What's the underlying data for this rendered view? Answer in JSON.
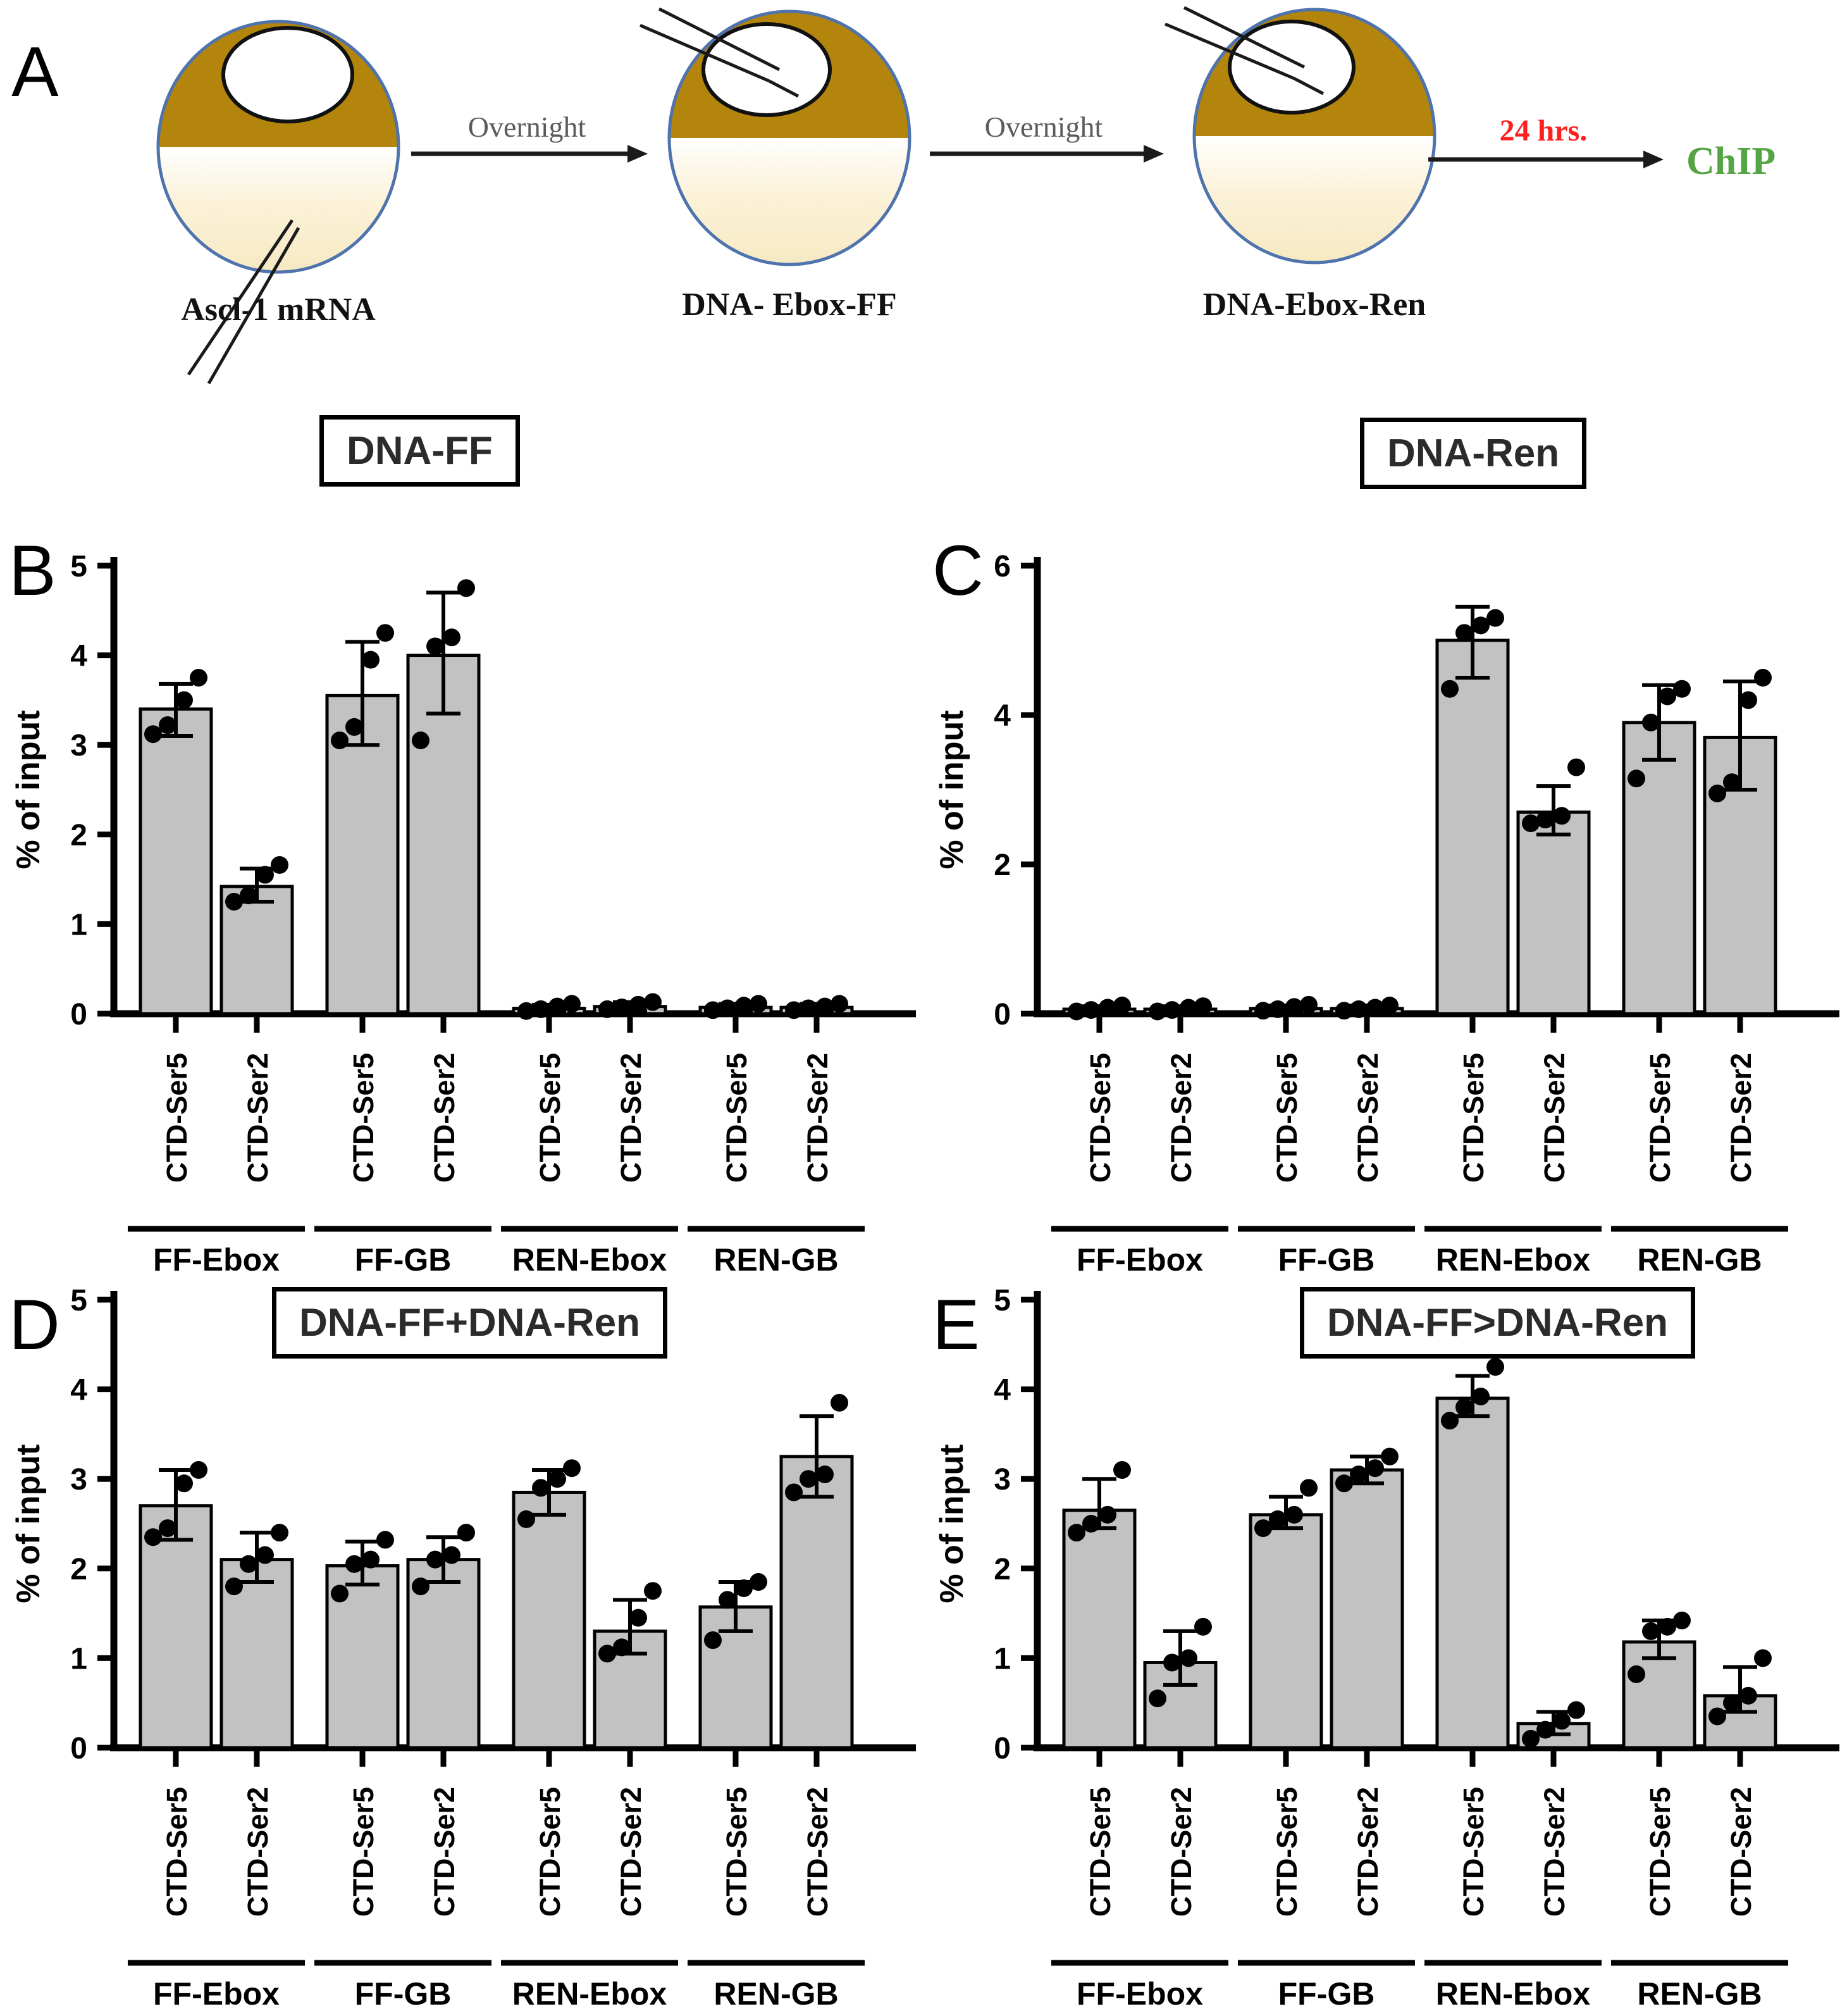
{
  "figure": {
    "panel_a": {
      "letter": "A",
      "eggs": [
        {
          "label": "Ascl-1 mRNA",
          "injection_site": "vegetal-cytoplasm"
        },
        {
          "label": "DNA- Ebox-FF",
          "injection_site": "nucleus"
        },
        {
          "label": "DNA-Ebox-Ren",
          "injection_site": "nucleus"
        }
      ],
      "arrow_labels": [
        "Overnight",
        "Overnight",
        "24 hrs."
      ],
      "result_label": "ChIP",
      "colors": {
        "animal_pole": "#B3850C",
        "vegetal_pole": "#F6E9C3",
        "membrane": "#4E73AD",
        "overnight_text": "#5B5B5B",
        "time_text": "#FF1F1F",
        "result_text": "#56A545"
      }
    },
    "panel_letters": [
      "B",
      "C",
      "D",
      "E"
    ]
  },
  "chart_data": [
    {
      "type": "bar",
      "panel": "B",
      "title": "DNA-FF",
      "ylabel": "% of input",
      "ylim": [
        0,
        5
      ],
      "yticks": [
        0,
        1,
        2,
        3,
        4,
        5
      ],
      "grid": false,
      "legend": "none",
      "groups": [
        "FF-Ebox",
        "FF-GB",
        "REN-Ebox",
        "REN-GB"
      ],
      "bar_labels": [
        "CTD-Ser5",
        "CTD-Ser2"
      ],
      "bar_fill": "#C2C2C2",
      "series": [
        {
          "group": "FF-Ebox",
          "bar": "CTD-Ser5",
          "mean": 3.4,
          "sd_range": [
            3.1,
            3.68
          ],
          "points": [
            3.12,
            3.22,
            3.5,
            3.75
          ]
        },
        {
          "group": "FF-Ebox",
          "bar": "CTD-Ser2",
          "mean": 1.42,
          "sd_range": [
            1.25,
            1.62
          ],
          "points": [
            1.25,
            1.32,
            1.55,
            1.66
          ]
        },
        {
          "group": "FF-GB",
          "bar": "CTD-Ser5",
          "mean": 3.55,
          "sd_range": [
            3.0,
            4.15
          ],
          "points": [
            3.05,
            3.2,
            3.95,
            4.25
          ]
        },
        {
          "group": "FF-GB",
          "bar": "CTD-Ser2",
          "mean": 4.0,
          "sd_range": [
            3.35,
            4.7
          ],
          "points": [
            3.05,
            4.1,
            4.2,
            4.75
          ]
        },
        {
          "group": "REN-Ebox",
          "bar": "CTD-Ser5",
          "mean": 0.06,
          "sd_range": [
            0.02,
            0.1
          ],
          "points": [
            0.03,
            0.05,
            0.08,
            0.11
          ]
        },
        {
          "group": "REN-Ebox",
          "bar": "CTD-Ser2",
          "mean": 0.08,
          "sd_range": [
            0.03,
            0.13
          ],
          "points": [
            0.05,
            0.07,
            0.1,
            0.13
          ]
        },
        {
          "group": "REN-GB",
          "bar": "CTD-Ser5",
          "mean": 0.07,
          "sd_range": [
            0.03,
            0.11
          ],
          "points": [
            0.04,
            0.06,
            0.09,
            0.11
          ]
        },
        {
          "group": "REN-GB",
          "bar": "CTD-Ser2",
          "mean": 0.07,
          "sd_range": [
            0.03,
            0.11
          ],
          "points": [
            0.04,
            0.06,
            0.08,
            0.11
          ]
        }
      ]
    },
    {
      "type": "bar",
      "panel": "C",
      "title": "DNA-Ren",
      "ylabel": "% of input",
      "ylim": [
        0,
        6
      ],
      "yticks": [
        0,
        2,
        4,
        6
      ],
      "grid": false,
      "legend": "none",
      "groups": [
        "FF-Ebox",
        "FF-GB",
        "REN-Ebox",
        "REN-GB"
      ],
      "bar_labels": [
        "CTD-Ser5",
        "CTD-Ser2"
      ],
      "bar_fill": "#C2C2C2",
      "series": [
        {
          "group": "FF-Ebox",
          "bar": "CTD-Ser5",
          "mean": 0.06,
          "sd_range": [
            0.02,
            0.1
          ],
          "points": [
            0.03,
            0.05,
            0.08,
            0.11
          ]
        },
        {
          "group": "FF-Ebox",
          "bar": "CTD-Ser2",
          "mean": 0.06,
          "sd_range": [
            0.02,
            0.1
          ],
          "points": [
            0.03,
            0.05,
            0.08,
            0.1
          ]
        },
        {
          "group": "FF-GB",
          "bar": "CTD-Ser5",
          "mean": 0.07,
          "sd_range": [
            0.02,
            0.11
          ],
          "points": [
            0.04,
            0.06,
            0.09,
            0.12
          ]
        },
        {
          "group": "FF-GB",
          "bar": "CTD-Ser2",
          "mean": 0.07,
          "sd_range": [
            0.02,
            0.11
          ],
          "points": [
            0.04,
            0.06,
            0.08,
            0.11
          ]
        },
        {
          "group": "REN-Ebox",
          "bar": "CTD-Ser5",
          "mean": 5.0,
          "sd_range": [
            4.5,
            5.45
          ],
          "points": [
            4.35,
            5.1,
            5.2,
            5.3
          ]
        },
        {
          "group": "REN-Ebox",
          "bar": "CTD-Ser2",
          "mean": 2.7,
          "sd_range": [
            2.4,
            3.05
          ],
          "points": [
            2.55,
            2.6,
            2.65,
            3.3
          ]
        },
        {
          "group": "REN-GB",
          "bar": "CTD-Ser5",
          "mean": 3.9,
          "sd_range": [
            3.4,
            4.4
          ],
          "points": [
            3.15,
            3.9,
            4.25,
            4.35
          ]
        },
        {
          "group": "REN-GB",
          "bar": "CTD-Ser2",
          "mean": 3.7,
          "sd_range": [
            3.0,
            4.45
          ],
          "points": [
            2.95,
            3.1,
            4.2,
            4.5
          ]
        }
      ]
    },
    {
      "type": "bar",
      "panel": "D",
      "title": "DNA-FF+DNA-Ren",
      "ylabel": "% of input",
      "ylim": [
        0,
        5
      ],
      "yticks": [
        0,
        1,
        2,
        3,
        4,
        5
      ],
      "grid": false,
      "legend": "none",
      "groups": [
        "FF-Ebox",
        "FF-GB",
        "REN-Ebox",
        "REN-GB"
      ],
      "bar_labels": [
        "CTD-Ser5",
        "CTD-Ser2"
      ],
      "bar_fill": "#C2C2C2",
      "series": [
        {
          "group": "FF-Ebox",
          "bar": "CTD-Ser5",
          "mean": 2.7,
          "sd_range": [
            2.32,
            3.1
          ],
          "points": [
            2.35,
            2.45,
            2.95,
            3.1
          ]
        },
        {
          "group": "FF-Ebox",
          "bar": "CTD-Ser2",
          "mean": 2.1,
          "sd_range": [
            1.85,
            2.4
          ],
          "points": [
            1.8,
            2.05,
            2.15,
            2.4
          ]
        },
        {
          "group": "FF-GB",
          "bar": "CTD-Ser5",
          "mean": 2.03,
          "sd_range": [
            1.82,
            2.3
          ],
          "points": [
            1.72,
            2.05,
            2.1,
            2.32
          ]
        },
        {
          "group": "FF-GB",
          "bar": "CTD-Ser2",
          "mean": 2.1,
          "sd_range": [
            1.85,
            2.35
          ],
          "points": [
            1.8,
            2.1,
            2.15,
            2.4
          ]
        },
        {
          "group": "REN-Ebox",
          "bar": "CTD-Ser5",
          "mean": 2.85,
          "sd_range": [
            2.6,
            3.1
          ],
          "points": [
            2.55,
            2.9,
            3.0,
            3.12
          ]
        },
        {
          "group": "REN-Ebox",
          "bar": "CTD-Ser2",
          "mean": 1.3,
          "sd_range": [
            1.05,
            1.65
          ],
          "points": [
            1.05,
            1.12,
            1.45,
            1.75
          ]
        },
        {
          "group": "REN-GB",
          "bar": "CTD-Ser5",
          "mean": 1.57,
          "sd_range": [
            1.3,
            1.85
          ],
          "points": [
            1.2,
            1.65,
            1.78,
            1.85
          ]
        },
        {
          "group": "REN-GB",
          "bar": "CTD-Ser2",
          "mean": 3.25,
          "sd_range": [
            2.8,
            3.7
          ],
          "points": [
            2.85,
            3.0,
            3.05,
            3.85
          ]
        }
      ]
    },
    {
      "type": "bar",
      "panel": "E",
      "title": "DNA-FF>DNA-Ren",
      "ylabel": "% of input",
      "ylim": [
        0,
        5
      ],
      "yticks": [
        0,
        1,
        2,
        3,
        4,
        5
      ],
      "grid": false,
      "legend": "none",
      "groups": [
        "FF-Ebox",
        "FF-GB",
        "REN-Ebox",
        "REN-GB"
      ],
      "bar_labels": [
        "CTD-Ser5",
        "CTD-Ser2"
      ],
      "bar_fill": "#C2C2C2",
      "series": [
        {
          "group": "FF-Ebox",
          "bar": "CTD-Ser5",
          "mean": 2.65,
          "sd_range": [
            2.45,
            3.0
          ],
          "points": [
            2.4,
            2.5,
            2.6,
            3.1
          ]
        },
        {
          "group": "FF-Ebox",
          "bar": "CTD-Ser2",
          "mean": 0.95,
          "sd_range": [
            0.7,
            1.3
          ],
          "points": [
            0.55,
            0.95,
            1.0,
            1.35
          ]
        },
        {
          "group": "FF-GB",
          "bar": "CTD-Ser5",
          "mean": 2.6,
          "sd_range": [
            2.45,
            2.8
          ],
          "points": [
            2.45,
            2.55,
            2.6,
            2.9
          ]
        },
        {
          "group": "FF-GB",
          "bar": "CTD-Ser2",
          "mean": 3.1,
          "sd_range": [
            2.95,
            3.25
          ],
          "points": [
            2.95,
            3.05,
            3.12,
            3.25
          ]
        },
        {
          "group": "REN-Ebox",
          "bar": "CTD-Ser5",
          "mean": 3.9,
          "sd_range": [
            3.7,
            4.15
          ],
          "points": [
            3.65,
            3.8,
            3.92,
            4.25
          ]
        },
        {
          "group": "REN-Ebox",
          "bar": "CTD-Ser2",
          "mean": 0.27,
          "sd_range": [
            0.15,
            0.4
          ],
          "points": [
            0.1,
            0.2,
            0.3,
            0.42
          ]
        },
        {
          "group": "REN-GB",
          "bar": "CTD-Ser5",
          "mean": 1.18,
          "sd_range": [
            1.0,
            1.42
          ],
          "points": [
            0.82,
            1.3,
            1.35,
            1.42
          ]
        },
        {
          "group": "REN-GB",
          "bar": "CTD-Ser2",
          "mean": 0.58,
          "sd_range": [
            0.4,
            0.9
          ],
          "points": [
            0.35,
            0.5,
            0.58,
            1.0
          ]
        }
      ]
    }
  ]
}
